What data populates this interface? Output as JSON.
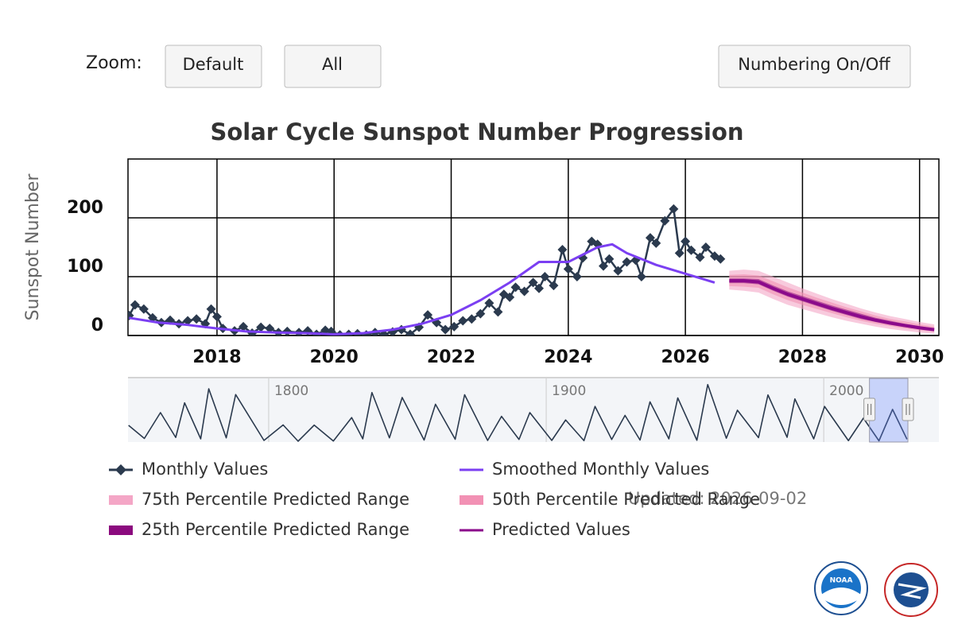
{
  "controls": {
    "zoom_label": "Zoom:",
    "buttons": [
      "Default",
      "All",
      "Numbering On/Off"
    ]
  },
  "chart_data": {
    "type": "line",
    "title": "Solar Cycle Sunspot Number Progression",
    "y_label": "Sunspot Number",
    "xlim": [
      2016.48,
      2030.33
    ],
    "xticks": [
      2018,
      2020,
      2022,
      2024,
      2026,
      2028,
      2030
    ],
    "ylim": [
      0,
      300
    ],
    "yticks": [
      0,
      100,
      200
    ],
    "grid": true,
    "series": [
      {
        "name": "Monthly Values",
        "color": "#2b3a4e",
        "x": [
          2016.5,
          2016.6,
          2016.75,
          2016.9,
          2017.05,
          2017.2,
          2017.35,
          2017.5,
          2017.65,
          2017.8,
          2017.9,
          2018.0,
          2018.1,
          2018.3,
          2018.45,
          2018.6,
          2018.75,
          2018.9,
          2019.05,
          2019.2,
          2019.4,
          2019.55,
          2019.7,
          2019.85,
          2019.95,
          2020.1,
          2020.25,
          2020.4,
          2020.55,
          2020.7,
          2020.85,
          2021.0,
          2021.15,
          2021.3,
          2021.45,
          2021.6,
          2021.75,
          2021.9,
          2022.05,
          2022.2,
          2022.35,
          2022.5,
          2022.65,
          2022.8,
          2022.9,
          2023.0,
          2023.1,
          2023.25,
          2023.4,
          2023.5,
          2023.6,
          2023.75,
          2023.9,
          2024.0,
          2024.15,
          2024.25,
          2024.4,
          2024.5,
          2024.6,
          2024.7,
          2024.85,
          2025.0,
          2025.15,
          2025.25,
          2025.4,
          2025.5,
          2025.65,
          2025.8,
          2025.9,
          2026.0,
          2026.1,
          2026.25,
          2026.35,
          2026.5,
          2026.6
        ],
        "values": [
          34,
          52,
          45,
          30,
          22,
          26,
          20,
          25,
          28,
          20,
          45,
          32,
          12,
          8,
          15,
          4,
          14,
          12,
          5,
          7,
          5,
          8,
          2,
          9,
          7,
          1,
          2,
          3,
          1,
          5,
          2,
          6,
          10,
          2,
          14,
          35,
          22,
          10,
          15,
          25,
          28,
          37,
          55,
          40,
          70,
          65,
          82,
          75,
          90,
          80,
          100,
          85,
          146,
          113,
          100,
          132,
          160,
          155,
          118,
          130,
          110,
          125,
          128,
          100,
          166,
          157,
          195,
          215,
          140,
          160,
          145,
          133,
          150,
          135,
          130
        ],
        "value_overrides": null
      },
      {
        "name": "Smoothed Monthly Values",
        "color": "#7b3ff2",
        "x": [
          2016.5,
          2017.0,
          2017.5,
          2018.0,
          2018.5,
          2019.0,
          2019.5,
          2020.0,
          2020.5,
          2021.0,
          2021.5,
          2022.0,
          2022.5,
          2023.0,
          2023.5,
          2024.0,
          2024.5,
          2024.75,
          2025.0,
          2025.5,
          2026.0,
          2026.5
        ],
        "values": [
          30,
          22,
          18,
          12,
          7,
          5,
          4,
          2,
          4,
          10,
          20,
          35,
          60,
          90,
          125,
          125,
          150,
          155,
          140,
          120,
          105,
          90
        ]
      },
      {
        "name": "Predicted Values",
        "color": "#8b0a8b",
        "x": [
          2026.75,
          2027.0,
          2027.25,
          2027.5,
          2027.75,
          2028.0,
          2028.25,
          2028.5,
          2028.75,
          2029.0,
          2029.25,
          2029.5,
          2029.75,
          2030.0,
          2030.25
        ],
        "values": [
          93,
          93,
          91,
          80,
          70,
          62,
          54,
          46,
          39,
          32,
          26,
          21,
          17,
          13,
          10
        ]
      }
    ],
    "ranges": [
      {
        "name": "75th Percentile Predicted Range",
        "color": "#f4a6c6",
        "upper": [
          110,
          112,
          110,
          100,
          90,
          80,
          71,
          62,
          54,
          46,
          39,
          33,
          28,
          23,
          19
        ],
        "lower": [
          78,
          76,
          73,
          62,
          52,
          45,
          38,
          31,
          25,
          20,
          15,
          11,
          8,
          5,
          3
        ]
      },
      {
        "name": "50th Percentile Predicted Range",
        "color": "#f291b4",
        "upper": [
          103,
          104,
          102,
          92,
          82,
          73,
          64,
          56,
          48,
          41,
          34,
          28,
          24,
          19,
          15
        ],
        "lower": [
          84,
          83,
          81,
          70,
          60,
          52,
          45,
          38,
          31,
          25,
          20,
          16,
          12,
          9,
          6
        ]
      },
      {
        "name": "25th Percentile Predicted Range",
        "color": "#8b0a7e",
        "upper": [
          97,
          97,
          96,
          85,
          75,
          67,
          59,
          51,
          44,
          37,
          30,
          25,
          20,
          16,
          12
        ],
        "lower": [
          89,
          89,
          87,
          76,
          66,
          58,
          50,
          42,
          35,
          28,
          23,
          18,
          14,
          11,
          8
        ]
      }
    ]
  },
  "navigator": {
    "xlim": [
      1749.3,
      2041.5
    ],
    "xticks": [
      1800,
      1900,
      2000
    ],
    "ylim": [
      0,
      300
    ],
    "color": "#2b3a4e",
    "x": [
      1749.5,
      1755.2,
      1761,
      1766.5,
      1769.7,
      1775.5,
      1778.4,
      1784.7,
      1788.1,
      1798.3,
      1805.2,
      1810.6,
      1816.4,
      1823.3,
      1829.9,
      1833.9,
      1837.2,
      1843.5,
      1848.1,
      1856,
      1860.1,
      1867.2,
      1870.6,
      1878.9,
      1883.9,
      1890.2,
      1894.1,
      1902,
      1907,
      1913.6,
      1917.6,
      1923.6,
      1928.4,
      1933.8,
      1937.4,
      1944.2,
      1947.4,
      1954.3,
      1958.2,
      1964.9,
      1968.9,
      1976.5,
      1979.9,
      1986.8,
      1989.6,
      1996.4,
      2000.3,
      2008.9,
      2014.3,
      2019.9,
      2024.8,
      2030
    ],
    "values": [
      80,
      14,
      144,
      19,
      193,
      12,
      264,
      17,
      235,
      4,
      82,
      0,
      81,
      1,
      119,
      12,
      245,
      17,
      220,
      6,
      186,
      10,
      234,
      4,
      125,
      9,
      144,
      4,
      107,
      3,
      175,
      9,
      130,
      6,
      198,
      12,
      218,
      5,
      285,
      15,
      156,
      18,
      233,
      20,
      213,
      12,
      175,
      3,
      116,
      2,
      160,
      10
    ]
  },
  "updated": "Updated: 2026-09-02",
  "logos": {
    "noaa": "NOAA"
  }
}
